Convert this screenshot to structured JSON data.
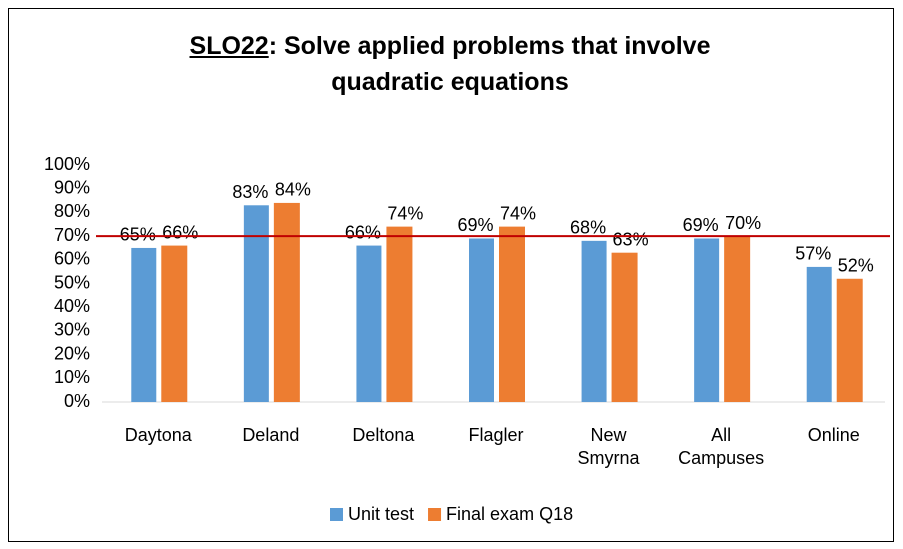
{
  "chart_data": {
    "type": "bar",
    "title": [
      "SLO22",
      ": Solve applied problems that involve quadratic equations"
    ],
    "categories": [
      "Daytona",
      "Deland",
      "Deltona",
      "Flagler",
      "New Smyrna",
      "All Campuses",
      "Online"
    ],
    "series": [
      {
        "name": "Unit test",
        "color": "#5b9bd5",
        "values": [
          65,
          83,
          66,
          69,
          68,
          69,
          57
        ],
        "value_labels": [
          "65%",
          "83%",
          "66%",
          "69%",
          "68%",
          "69%",
          "57%"
        ]
      },
      {
        "name": "Final exam Q18",
        "color": "#ed7d31",
        "values": [
          66,
          84,
          74,
          74,
          63,
          70,
          52
        ],
        "value_labels": [
          "66%",
          "84%",
          "74%",
          "74%",
          "63%",
          "70%",
          "52%"
        ]
      }
    ],
    "threshold": 70,
    "threshold_color": "#c00000",
    "ylim": [
      0,
      100
    ],
    "yticks": [
      {
        "value": 0,
        "label": "0%"
      },
      {
        "value": 10,
        "label": "10%"
      },
      {
        "value": 20,
        "label": "20%"
      },
      {
        "value": 30,
        "label": "30%"
      },
      {
        "value": 40,
        "label": "40%"
      },
      {
        "value": 50,
        "label": "50%"
      },
      {
        "value": 60,
        "label": "60%"
      },
      {
        "value": 70,
        "label": "70%"
      },
      {
        "value": 80,
        "label": "80%"
      },
      {
        "value": 90,
        "label": "90%"
      },
      {
        "value": 100,
        "label": "100%"
      }
    ],
    "grid": false,
    "legend": "bottom"
  }
}
